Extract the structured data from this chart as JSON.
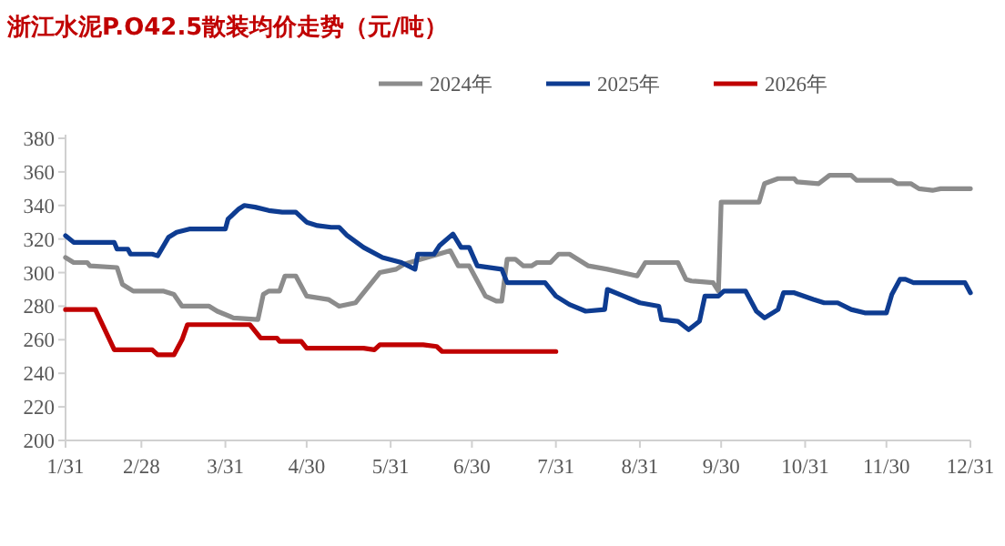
{
  "chart_data": {
    "type": "line",
    "title": "浙江水泥P.O42.5散装均价走势（元/吨）",
    "legend": "top",
    "xlim": [
      "--01-31",
      "--12-31"
    ],
    "xticks": [
      {
        "value": "--01-31",
        "label": "1/31"
      },
      {
        "value": "--02-28",
        "label": "2/28"
      },
      {
        "value": "--03-31",
        "label": "3/31"
      },
      {
        "value": "--04-30",
        "label": "4/30"
      },
      {
        "value": "--05-31",
        "label": "5/31"
      },
      {
        "value": "--06-30",
        "label": "6/30"
      },
      {
        "value": "--07-31",
        "label": "7/31"
      },
      {
        "value": "--08-31",
        "label": "8/31"
      },
      {
        "value": "--09-30",
        "label": "9/30"
      },
      {
        "value": "--10-31",
        "label": "10/31"
      },
      {
        "value": "--11-30",
        "label": "11/30"
      },
      {
        "value": "--12-31",
        "label": "12/31"
      }
    ],
    "ylim": [
      200,
      380
    ],
    "yticks": [
      200,
      220,
      240,
      260,
      280,
      300,
      320,
      340,
      360,
      380
    ],
    "series": [
      {
        "name": "2024年",
        "color": "#8c8c8c",
        "x": [
          "--01-31",
          "--02-03",
          "--02-08",
          "--02-09",
          "--02-19",
          "--02-21",
          "--02-25",
          "--03-08",
          "--03-12",
          "--03-15",
          "--03-25",
          "--03-28",
          "--04-03",
          "--04-12",
          "--04-14",
          "--04-16",
          "--04-20",
          "--04-22",
          "--04-26",
          "--04-30",
          "--05-08",
          "--05-11",
          "--05-12",
          "--05-18",
          "--05-20",
          "--05-27",
          "--06-02",
          "--06-05",
          "--06-22",
          "--06-25",
          "--06-29",
          "--07-02",
          "--07-05",
          "--07-09",
          "--07-11",
          "--07-13",
          "--07-16",
          "--07-19",
          "--07-22",
          "--07-24",
          "--07-29",
          "--08-01",
          "--08-05",
          "--08-12",
          "--08-19",
          "--08-30",
          "--09-02",
          "--09-12",
          "--09-14",
          "--09-17",
          "--09-19",
          "--09-27",
          "--09-29",
          "--09-30",
          "--10-14",
          "--10-16",
          "--10-21",
          "--10-27",
          "--10-28",
          "--11-05",
          "--11-09",
          "--11-17",
          "--11-19",
          "--12-02",
          "--12-04",
          "--12-09",
          "--12-12",
          "--12-17",
          "--12-20",
          "--12-31"
        ],
        "values": [
          309,
          306,
          306,
          304,
          303,
          293,
          289,
          289,
          287,
          280,
          280,
          277,
          273,
          272,
          287,
          289,
          289,
          298,
          298,
          286,
          284,
          281,
          280,
          282,
          286,
          300,
          302,
          305,
          313,
          304,
          304,
          295,
          286,
          283,
          283,
          308,
          308,
          304,
          304,
          306,
          306,
          311,
          311,
          304,
          302,
          298,
          306,
          306,
          306,
          296,
          295,
          294,
          289,
          342,
          342,
          353,
          356,
          356,
          354,
          353,
          358,
          358,
          355,
          355,
          353,
          353,
          350,
          349,
          350,
          350
        ]
      },
      {
        "name": "2025年",
        "color": "#0e3c91",
        "x": [
          "--01-31",
          "--02-03",
          "--02-18",
          "--02-19",
          "--02-23",
          "--02-24",
          "--03-04",
          "--03-06",
          "--03-10",
          "--03-13",
          "--03-18",
          "--03-31",
          "--04-01",
          "--04-05",
          "--04-07",
          "--04-11",
          "--04-16",
          "--04-21",
          "--04-26",
          "--04-30",
          "--05-04",
          "--05-09",
          "--05-12",
          "--05-15",
          "--05-21",
          "--05-28",
          "--06-04",
          "--06-09",
          "--06-10",
          "--06-16",
          "--06-18",
          "--06-23",
          "--06-26",
          "--06-29",
          "--07-02",
          "--07-11",
          "--07-13",
          "--07-27",
          "--07-31",
          "--08-05",
          "--08-11",
          "--08-18",
          "--08-19",
          "--08-25",
          "--08-31",
          "--09-07",
          "--09-08",
          "--09-14",
          "--09-18",
          "--09-22",
          "--09-24",
          "--09-29",
          "--10-01",
          "--10-09",
          "--10-13",
          "--10-16",
          "--10-21",
          "--10-23",
          "--10-27",
          "--11-03",
          "--11-07",
          "--11-12",
          "--11-17",
          "--11-22",
          "--11-30",
          "--12-02",
          "--12-05",
          "--12-07",
          "--12-10",
          "--12-29",
          "--12-31"
        ],
        "values": [
          322,
          318,
          318,
          314,
          314,
          311,
          311,
          310,
          321,
          324,
          326,
          326,
          332,
          338,
          340,
          339,
          337,
          336,
          336,
          330,
          328,
          327,
          327,
          322,
          315,
          309,
          306,
          302,
          311,
          311,
          316,
          323,
          315,
          315,
          304,
          302,
          294,
          294,
          286,
          281,
          277,
          278,
          290,
          286,
          282,
          280,
          272,
          271,
          266,
          271,
          286,
          286,
          289,
          289,
          277,
          273,
          278,
          288,
          288,
          284,
          282,
          282,
          278,
          276,
          276,
          287,
          296,
          296,
          294,
          294,
          288
        ]
      },
      {
        "name": "2026年",
        "color": "#c00000",
        "x": [
          "--01-31",
          "--02-11",
          "--02-18",
          "--03-04",
          "--03-06",
          "--03-12",
          "--03-15",
          "--03-17",
          "--04-09",
          "--04-13",
          "--04-19",
          "--04-20",
          "--04-28",
          "--04-30",
          "--05-21",
          "--05-25",
          "--05-27",
          "--06-12",
          "--06-17",
          "--06-19",
          "--07-31"
        ],
        "values": [
          278,
          278,
          254,
          254,
          251,
          251,
          260,
          269,
          269,
          261,
          261,
          259,
          259,
          255,
          255,
          254,
          257,
          257,
          256,
          253,
          253
        ]
      }
    ]
  }
}
